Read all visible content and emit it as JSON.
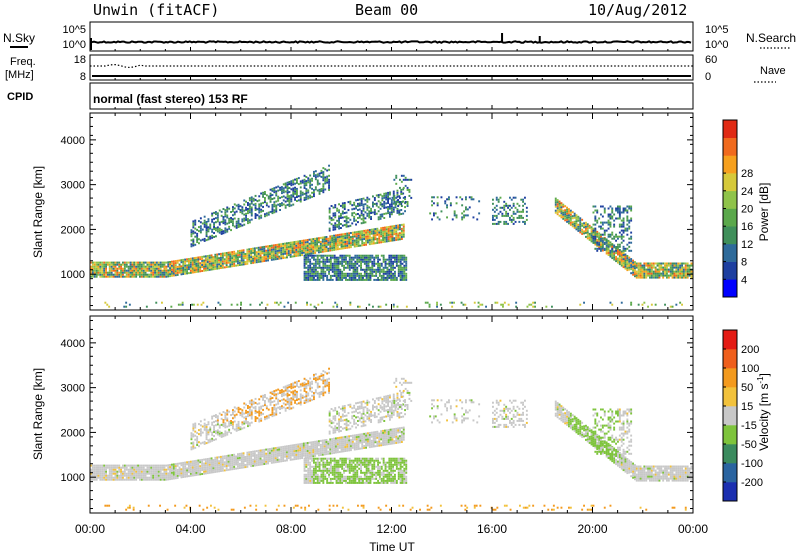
{
  "header": {
    "station": "Unwin (fitACF)",
    "beam": "Beam 00",
    "date": "10/Aug/2012"
  },
  "top_panels": {
    "nsky_label": "N.Sky",
    "nsky_tick_top": "10^5",
    "nsky_tick_bottom": "10^0",
    "nsearch_label": "N.Search",
    "nsearch_tick_top": "10^5",
    "nsearch_tick_bottom": "10^0",
    "freq_label": "Freq.",
    "freq_unit": "[MHz]",
    "freq_tick_top": "18",
    "freq_tick_bottom": "8",
    "nave_label": "Nave",
    "nave_tick_top": "60",
    "nave_tick_bottom": "0",
    "cpid_label": "CPID",
    "cpid_text": "normal (fast stereo) 153 RF"
  },
  "chart_data": [
    {
      "type": "heatmap",
      "quantity": "Power",
      "colorbar_label": "Power [dB]",
      "colorbar_ticks": [
        "4",
        "8",
        "12",
        "16",
        "20",
        "24",
        "28"
      ],
      "ylabel": "Slant Range [km]",
      "ylim": [
        200,
        4600
      ],
      "yticks": [
        "1000",
        "2000",
        "3000",
        "4000"
      ],
      "xlim_hours": [
        0,
        24
      ],
      "colors": [
        "#0000ff",
        "#1e3fa0",
        "#2e6a9a",
        "#3f8f5a",
        "#5aa84b",
        "#8fc34a",
        "#d6c93a",
        "#f6a01e",
        "#f06a1e",
        "#e02a14"
      ]
    },
    {
      "type": "heatmap",
      "quantity": "Velocity",
      "colorbar_label": "Velocity [m s^-1]",
      "colorbar_ticks": [
        "200",
        "100",
        "50",
        "15",
        "-15",
        "-50",
        "-100",
        "-200"
      ],
      "ylabel": "Slant Range [km]",
      "ylim": [
        200,
        4600
      ],
      "yticks": [
        "1000",
        "2000",
        "3000",
        "4000"
      ],
      "xlim_hours": [
        0,
        24
      ],
      "colors": [
        "#1b2fb0",
        "#2a64a0",
        "#3b8b5e",
        "#7ec43c",
        "#c8c8c8",
        "#f2c23c",
        "#f39a1e",
        "#ef5f1c",
        "#e41b14"
      ]
    }
  ],
  "xaxis": {
    "label": "Time UT",
    "ticks": [
      "00:00",
      "04:00",
      "08:00",
      "12:00",
      "16:00",
      "20:00",
      "00:00"
    ]
  }
}
